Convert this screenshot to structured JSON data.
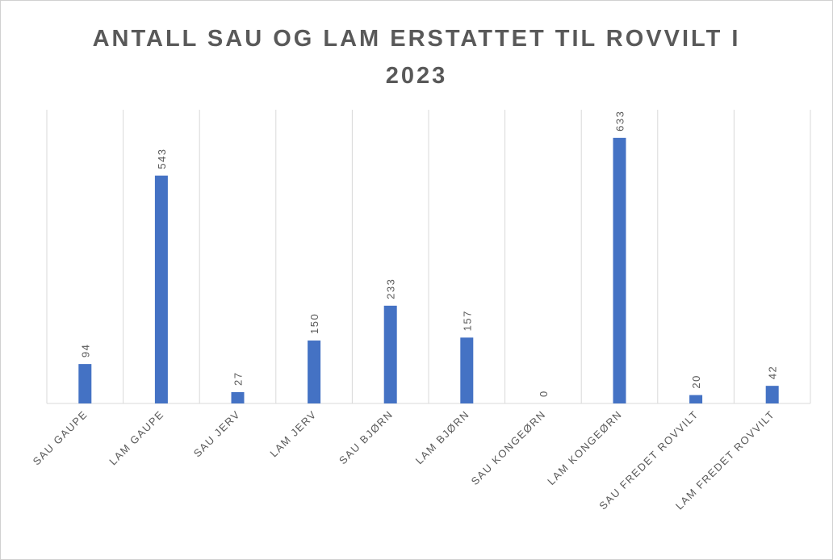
{
  "chart_data": {
    "type": "bar",
    "title": "ANTALL SAU OG LAM ERSTATTET TIL ROVVILT I 2023",
    "categories": [
      "SAU GAUPE",
      "LAM GAUPE",
      "SAU JERV",
      "LAM JERV",
      "SAU BJØRN",
      "LAM BJØRN",
      "SAU KONGEØRN",
      "LAM KONGEØRN",
      "SAU FREDET ROVVILT",
      "LAM FREDET ROVVILT"
    ],
    "values": [
      94,
      543,
      27,
      150,
      233,
      157,
      0,
      633,
      20,
      42
    ],
    "color": "#4472c4",
    "ylim": [
      0,
      700
    ]
  }
}
